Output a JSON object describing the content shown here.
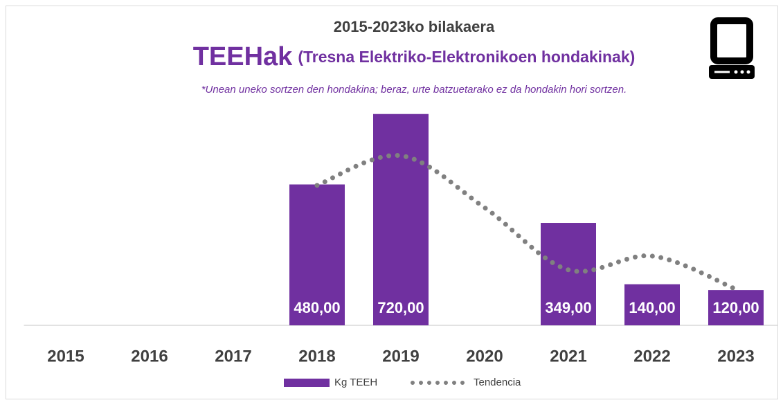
{
  "chart_data": {
    "type": "bar",
    "title": "2015-2023ko bilakaera",
    "heading": "TEEHak",
    "heading_sub": "(Tresna Elektriko-Elektronikoen hondakinak)",
    "subtitle": "*Unean uneko sortzen den hondakina; beraz, urte batzuetarako ez da hondakin hori sortzen.",
    "categories": [
      "2015",
      "2016",
      "2017",
      "2018",
      "2019",
      "2020",
      "2021",
      "2022",
      "2023"
    ],
    "ylim": [
      0,
      750
    ],
    "grid": false,
    "legend": "bottom",
    "series": [
      {
        "name": "Kg TEEH",
        "type": "bar",
        "color": "#7030a0",
        "values": [
          null,
          null,
          null,
          480,
          720,
          null,
          349,
          140,
          120
        ],
        "value_labels": [
          null,
          null,
          null,
          "480,00",
          "720,00",
          null,
          "349,00",
          "140,00",
          "120,00"
        ]
      },
      {
        "name": "Tendencia",
        "type": "line",
        "style": "dotted",
        "color": "#808080",
        "values": [
          null,
          null,
          null,
          477,
          578,
          401,
          189,
          236,
          123
        ]
      }
    ]
  }
}
